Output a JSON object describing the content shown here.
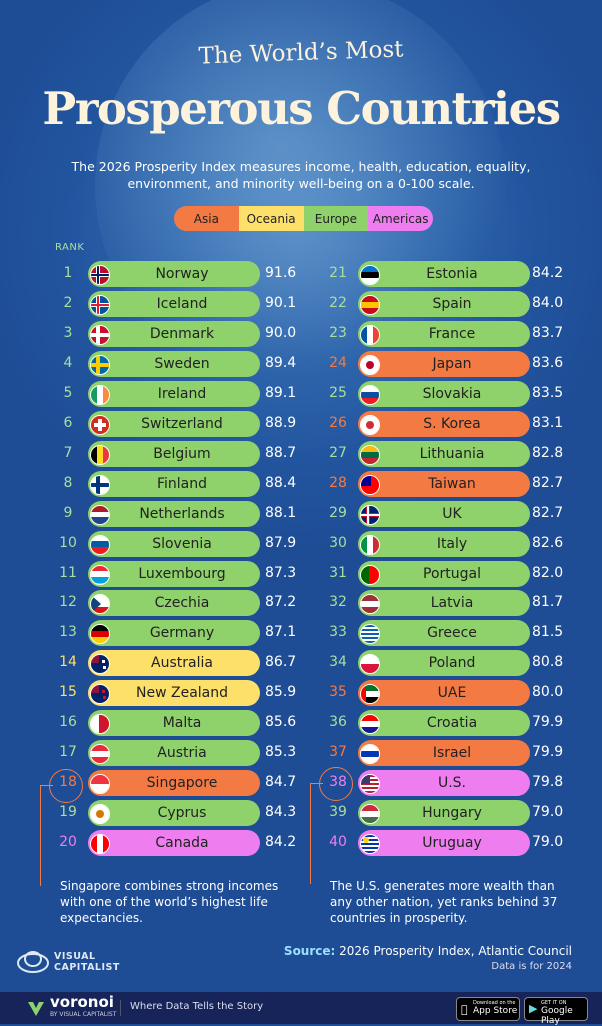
{
  "title_line1": "The World’s Most",
  "title_line2": "Prosperous Countries",
  "subtitle": "The 2026 Prosperity Index measures income, health, education, equality, environment, and minority well-being on a 0-100 scale.",
  "legend": [
    {
      "label": "Asia",
      "color": "#f47a44"
    },
    {
      "label": "Oceania",
      "color": "#fde06a"
    },
    {
      "label": "Europe",
      "color": "#8fd16a"
    },
    {
      "label": "Americas",
      "color": "#ee7ef0"
    }
  ],
  "rank_header": "RANK",
  "notes": {
    "left": "Singapore combines strong incomes with one of the world’s highest life expectancies.",
    "right": "The U.S. generates more wealth than any other nation, yet ranks behind 37 countries in prosperity."
  },
  "source_label": "Source:",
  "source_text": "2026 Prosperity Index, Atlantic Council",
  "source_note": "Data is for 2024",
  "brand": {
    "line1": "VISUAL",
    "line2": "CAPITALIST"
  },
  "footer": {
    "brand": "voronoi",
    "brand_sub": "BY VISUAL CAPITALIST",
    "tagline": "Where Data Tells the Story",
    "app_store_small": "Download on the",
    "app_store": "App Store",
    "google_small": "GET IT ON",
    "google": "Google Play"
  },
  "chart_data": {
    "type": "bar",
    "title": "Prosperous Countries",
    "categories": [
      "Norway",
      "Iceland",
      "Denmark",
      "Sweden",
      "Ireland",
      "Switzerland",
      "Belgium",
      "Finland",
      "Netherlands",
      "Slovenia",
      "Luxembourg",
      "Czechia",
      "Germany",
      "Australia",
      "New Zealand",
      "Malta",
      "Austria",
      "Singapore",
      "Cyprus",
      "Canada",
      "Estonia",
      "Spain",
      "France",
      "Japan",
      "Slovakia",
      "S. Korea",
      "Lithuania",
      "Taiwan",
      "UK",
      "Italy",
      "Portugal",
      "Latvia",
      "Greece",
      "Poland",
      "UAE",
      "Croatia",
      "Israel",
      "U.S.",
      "Hungary",
      "Uruguay"
    ],
    "ranks": [
      1,
      2,
      3,
      4,
      5,
      6,
      7,
      8,
      9,
      10,
      11,
      12,
      13,
      14,
      15,
      16,
      17,
      18,
      19,
      20,
      21,
      22,
      23,
      24,
      25,
      26,
      27,
      28,
      29,
      30,
      31,
      32,
      33,
      34,
      35,
      36,
      37,
      38,
      39,
      40
    ],
    "values": [
      91.6,
      90.1,
      90.0,
      89.4,
      89.1,
      88.9,
      88.7,
      88.4,
      88.1,
      87.9,
      87.3,
      87.2,
      87.1,
      86.7,
      85.9,
      85.6,
      85.3,
      84.7,
      84.3,
      84.2,
      84.2,
      84.0,
      83.7,
      83.6,
      83.5,
      83.1,
      82.8,
      82.7,
      82.7,
      82.6,
      82.0,
      81.7,
      81.5,
      80.8,
      80.0,
      79.9,
      79.9,
      79.8,
      79.0,
      79.0
    ],
    "value_labels": [
      "91.6",
      "90.1",
      "90.0",
      "89.4",
      "89.1",
      "88.9",
      "88.7",
      "88.4",
      "88.1",
      "87.9",
      "87.3",
      "87.2",
      "87.1",
      "86.7",
      "85.9",
      "85.6",
      "85.3",
      "84.7",
      "84.3",
      "84.2",
      "84.2",
      "84.0",
      "83.7",
      "83.6",
      "83.5",
      "83.1",
      "82.8",
      "82.7",
      "82.7",
      "82.6",
      "82.0",
      "81.7",
      "81.5",
      "80.8",
      "80.0",
      "79.9",
      "79.9",
      "79.8",
      "79.0",
      "79.0"
    ],
    "regions": [
      "Europe",
      "Europe",
      "Europe",
      "Europe",
      "Europe",
      "Europe",
      "Europe",
      "Europe",
      "Europe",
      "Europe",
      "Europe",
      "Europe",
      "Europe",
      "Oceania",
      "Oceania",
      "Europe",
      "Europe",
      "Asia",
      "Europe",
      "Americas",
      "Europe",
      "Europe",
      "Europe",
      "Asia",
      "Europe",
      "Asia",
      "Europe",
      "Asia",
      "Europe",
      "Europe",
      "Europe",
      "Europe",
      "Europe",
      "Europe",
      "Asia",
      "Europe",
      "Asia",
      "Americas",
      "Europe",
      "Americas"
    ],
    "highlighted": [
      "Singapore",
      "U.S."
    ],
    "ylim": [
      0,
      100
    ]
  }
}
